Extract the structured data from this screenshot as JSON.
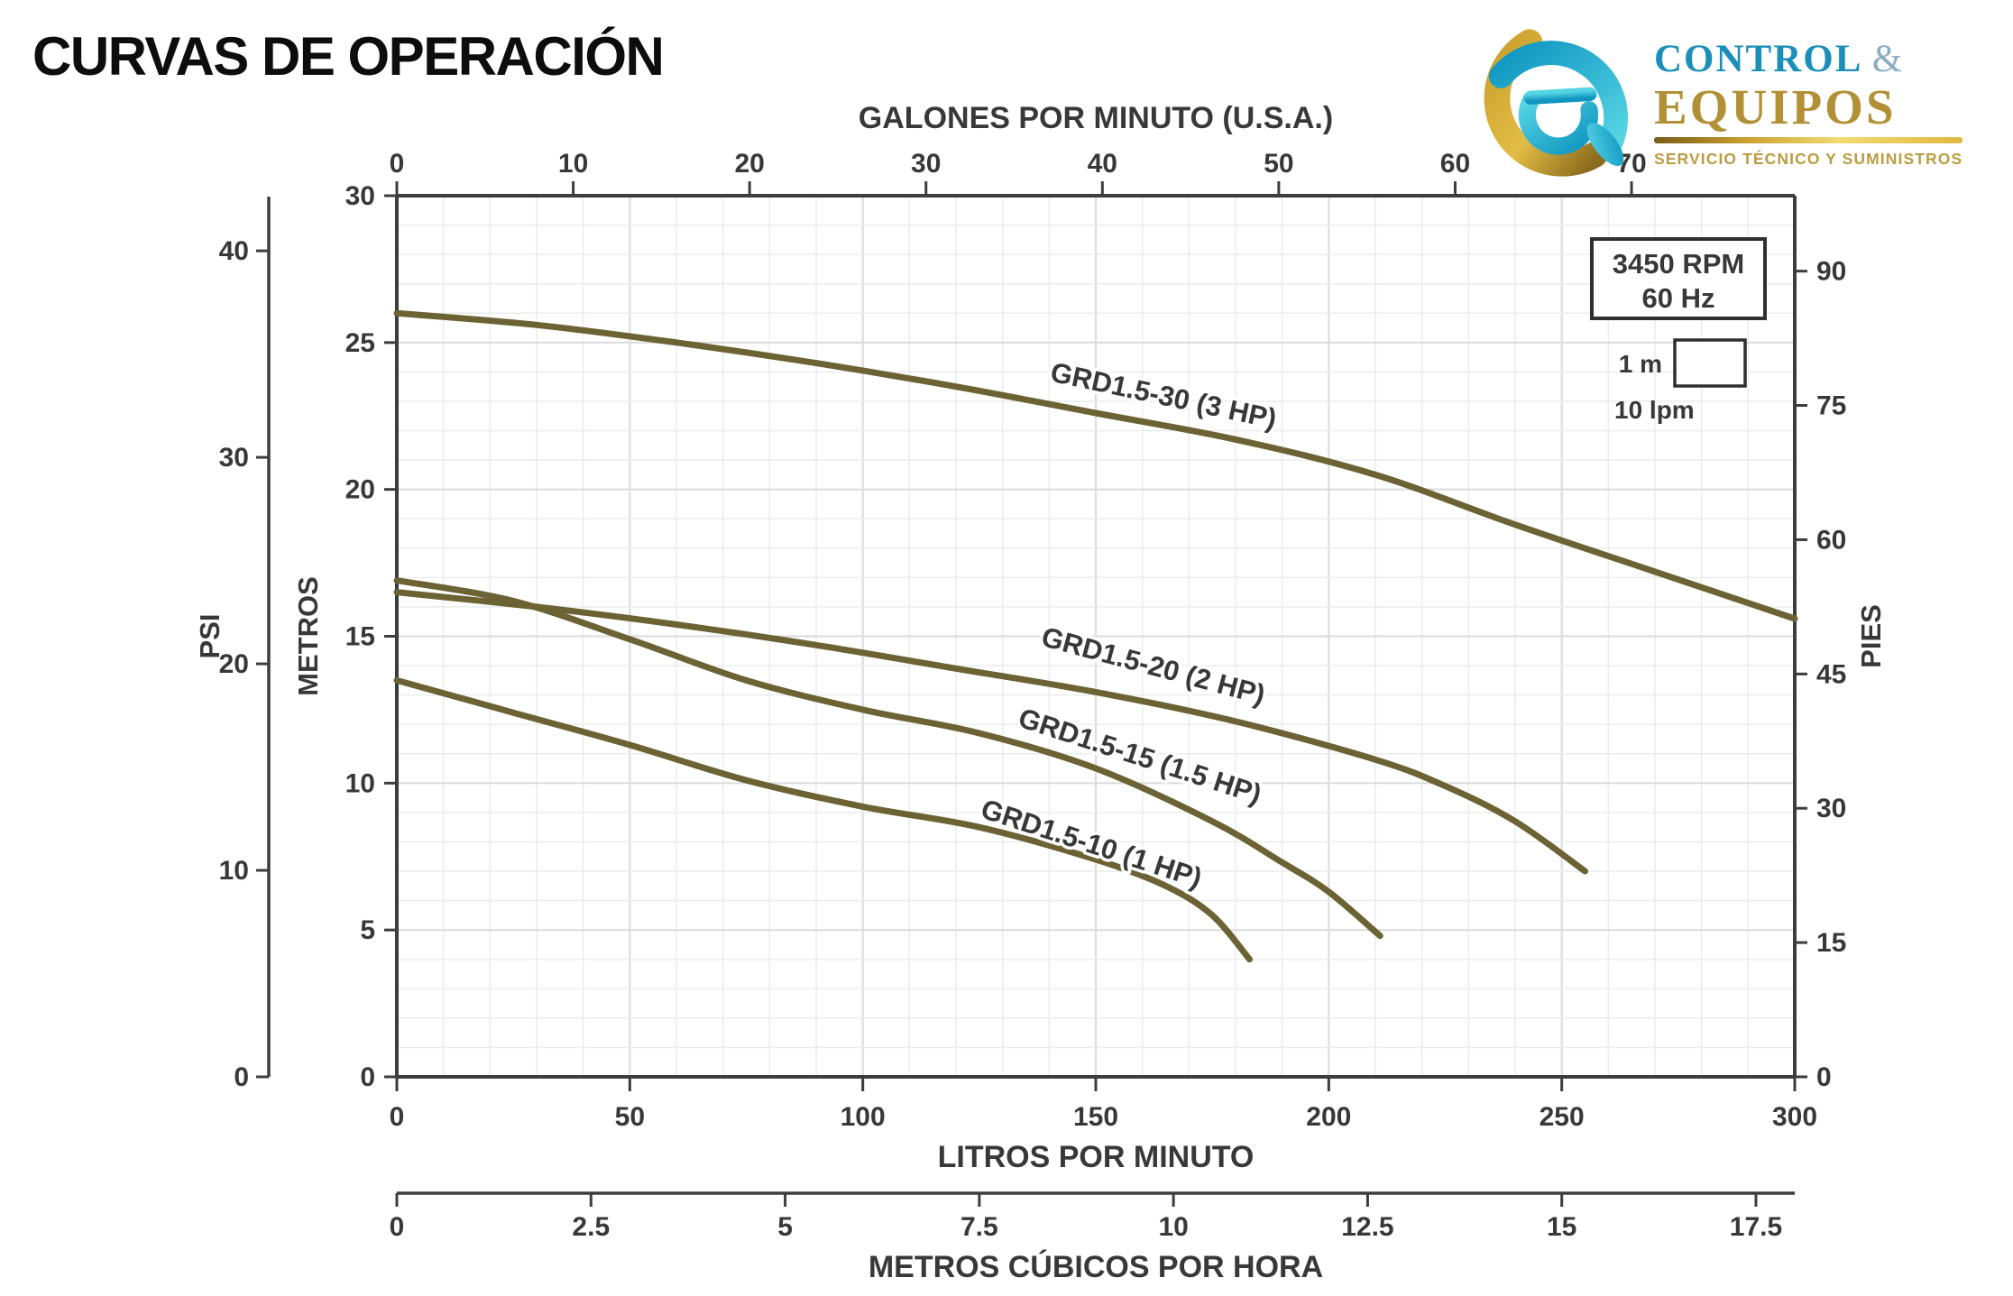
{
  "title": "CURVAS DE OPERACIÓN",
  "logo": {
    "brand_top": "CONTROL",
    "amp": "&",
    "brand_bottom": "EQUIPOS",
    "tagline": "SERVICIO TÉCNICO Y SUMINISTROS",
    "teal": "#1b8fb8",
    "gold": "#b29036"
  },
  "chart_data": {
    "type": "line",
    "xlabel": "LITROS POR MINUTO",
    "ylabel": "METROS",
    "xlim": [
      0,
      300
    ],
    "ylim": [
      0,
      30
    ],
    "grid": {
      "on": true,
      "minor_lpm": 10,
      "minor_m": 1,
      "major_lpm": 50,
      "major_m": 5
    },
    "axes": {
      "top": {
        "label": "GALONES POR MINUTO (U.S.A.)",
        "ticks": [
          0,
          10,
          20,
          30,
          40,
          50,
          60,
          70
        ],
        "lpm_per_unit": 3.7854
      },
      "bottom": {
        "label": "LITROS POR MINUTO",
        "ticks": [
          0,
          50,
          100,
          150,
          200,
          250,
          300
        ]
      },
      "bottom2": {
        "label": "METROS CÚBICOS POR HORA",
        "ticks": [
          0,
          2.5,
          5,
          7.5,
          10,
          12.5,
          15,
          17.5
        ],
        "lpm_per_unit": 16.667
      },
      "left": {
        "label": "METROS",
        "ticks": [
          0,
          5,
          10,
          15,
          20,
          25,
          30
        ]
      },
      "left_outer": {
        "label": "PSI",
        "ticks": [
          0,
          10,
          20,
          30,
          40
        ],
        "m_per_unit": 0.70307
      },
      "right": {
        "label": "PIES",
        "ticks": [
          0,
          15,
          30,
          45,
          60,
          75,
          90
        ],
        "m_per_unit": 0.3048
      }
    },
    "annotations": {
      "rpm_box": {
        "line1": "3450 RPM",
        "line2": "60 Hz"
      },
      "scale_box": {
        "v": "1 m",
        "h": "10 lpm"
      }
    },
    "series": [
      {
        "name": "GRD1.5-30 (3 HP)",
        "points": [
          [
            0,
            26.0
          ],
          [
            30,
            25.6
          ],
          [
            60,
            25.0
          ],
          [
            90,
            24.3
          ],
          [
            120,
            23.5
          ],
          [
            150,
            22.6
          ],
          [
            180,
            21.7
          ],
          [
            210,
            20.5
          ],
          [
            240,
            18.8
          ],
          [
            270,
            17.2
          ],
          [
            300,
            15.6
          ]
        ],
        "label": {
          "lpm": 140,
          "m": 23.7,
          "angle": 12
        }
      },
      {
        "name": "GRD1.5-20 (2 HP)",
        "points": [
          [
            0,
            16.5
          ],
          [
            30,
            16.0
          ],
          [
            60,
            15.4
          ],
          [
            90,
            14.7
          ],
          [
            120,
            13.9
          ],
          [
            150,
            13.1
          ],
          [
            180,
            12.1
          ],
          [
            210,
            10.8
          ],
          [
            225,
            9.9
          ],
          [
            240,
            8.7
          ],
          [
            255,
            7.0
          ]
        ],
        "label": {
          "lpm": 138,
          "m": 14.7,
          "angle": 15
        }
      },
      {
        "name": "GRD1.5-15 (1.5 HP)",
        "points": [
          [
            0,
            16.9
          ],
          [
            25,
            16.2
          ],
          [
            50,
            14.9
          ],
          [
            75,
            13.5
          ],
          [
            100,
            12.5
          ],
          [
            125,
            11.7
          ],
          [
            150,
            10.5
          ],
          [
            175,
            8.7
          ],
          [
            190,
            7.3
          ],
          [
            200,
            6.3
          ],
          [
            211,
            4.8
          ]
        ],
        "label": {
          "lpm": 133,
          "m": 11.95,
          "angle": 18
        }
      },
      {
        "name": "GRD1.5-10 (1 HP)",
        "points": [
          [
            0,
            13.5
          ],
          [
            25,
            12.4
          ],
          [
            50,
            11.3
          ],
          [
            75,
            10.1
          ],
          [
            100,
            9.2
          ],
          [
            125,
            8.5
          ],
          [
            150,
            7.4
          ],
          [
            165,
            6.5
          ],
          [
            175,
            5.5
          ],
          [
            183,
            4.0
          ]
        ],
        "label": {
          "lpm": 125,
          "m": 8.85,
          "angle": 18
        }
      }
    ],
    "style": {
      "curve_color": "#6b6333",
      "axis_color": "#3d3d3d",
      "label_color": "#383838",
      "grid_minor": "#ececec",
      "grid_major": "#dddddd",
      "box_border": "#2f2f2f"
    }
  }
}
